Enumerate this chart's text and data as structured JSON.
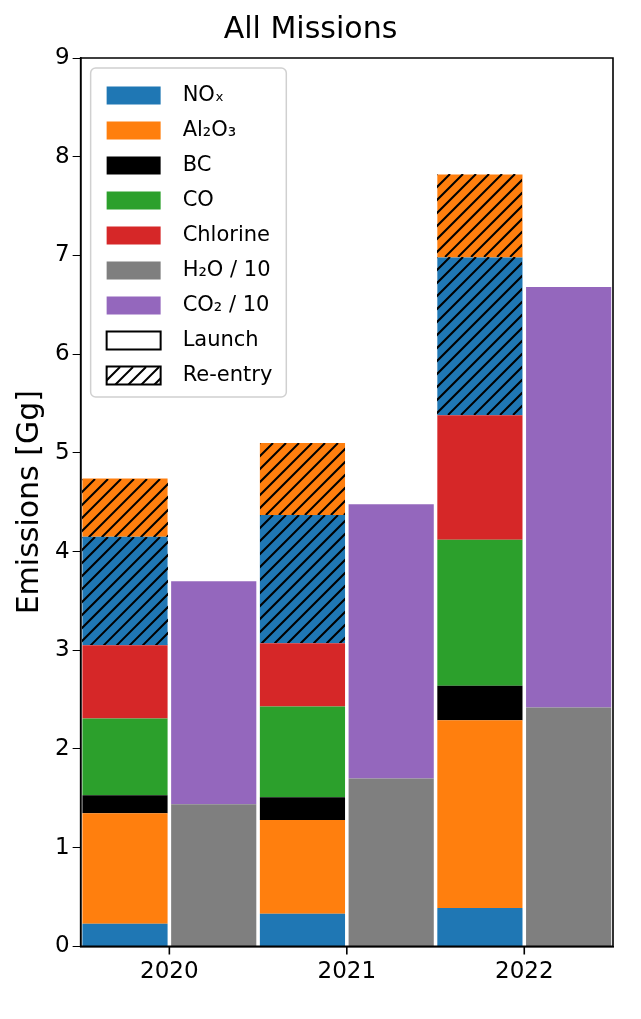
{
  "chart_data": {
    "type": "bar",
    "title": "All Missions",
    "ylabel": "Emissions [Gg]",
    "categories": [
      "2020",
      null,
      "2021",
      null,
      "2022",
      null
    ],
    "stacked": true,
    "ylim": [
      0,
      9
    ],
    "yticks": [
      0,
      1,
      2,
      3,
      4,
      5,
      6,
      7,
      8,
      9
    ],
    "grid": false,
    "legend": "top left",
    "annotations": [
      "Launch",
      "Re-entry"
    ],
    "series": [
      {
        "name": "NOₓ",
        "color": "#1f77b4",
        "values": [
          0.23,
          null,
          0.33,
          null,
          0.39,
          null
        ]
      },
      {
        "name": "Al₂O₃",
        "color": "#ff7f0e",
        "values": [
          1.12,
          null,
          0.95,
          null,
          1.9,
          null
        ]
      },
      {
        "name": "BC",
        "color": "#000000",
        "values": [
          0.18,
          null,
          0.23,
          null,
          0.35,
          null
        ]
      },
      {
        "name": "CO",
        "color": "#2ca02c",
        "values": [
          0.78,
          null,
          0.92,
          null,
          1.48,
          null
        ]
      },
      {
        "name": "Chlorine",
        "color": "#d62728",
        "values": [
          0.74,
          null,
          0.64,
          null,
          1.26,
          null
        ]
      },
      {
        "color": "#1f77b4",
        "values": [
          1.1,
          null,
          1.3,
          null,
          1.6,
          null
        ]
      },
      {
        "color": "#ff7f0e",
        "values": [
          0.59,
          null,
          0.73,
          null,
          0.84,
          null
        ]
      },
      {
        "name": "H₂O / 10",
        "color": "#7f7f7f",
        "values": [
          null,
          1.44,
          null,
          1.7,
          null,
          2.42
        ]
      },
      {
        "name": "CO₂ / 10",
        "color": "#9467bd",
        "values": [
          null,
          2.26,
          null,
          2.78,
          null,
          4.26
        ]
      }
    ]
  }
}
